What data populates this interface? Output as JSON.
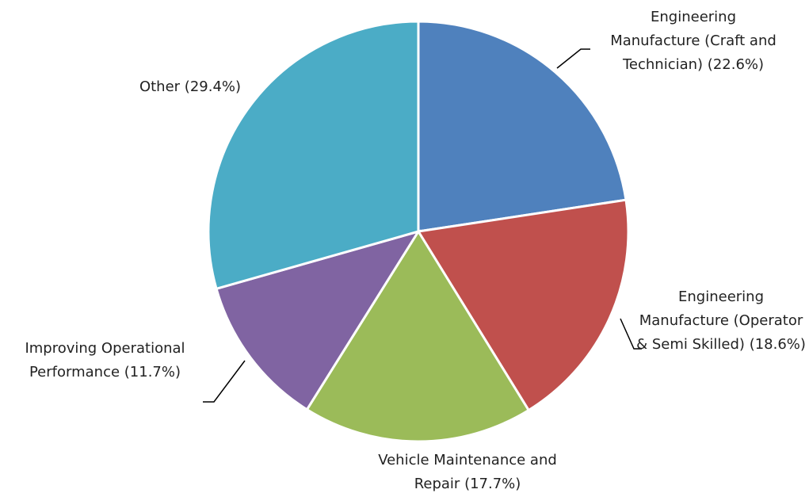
{
  "chart_data": {
    "type": "pie",
    "categories": [
      "Engineering Manufacture (Craft and Technician)",
      "Engineering Manufacture (Operator & Semi Skilled)",
      "Vehicle Maintenance and Repair",
      "Improving Operational Performance",
      "Other"
    ],
    "values": [
      22.6,
      18.6,
      17.7,
      11.7,
      29.4
    ],
    "value_labels": [
      "(22.6%)",
      "(18.6%)",
      "(17.7%)",
      "(11.7%)",
      "(29.4%)"
    ],
    "colors": [
      "#4f81bd",
      "#c0504d",
      "#9bbb59",
      "#8064a2",
      "#4bacc6"
    ]
  }
}
